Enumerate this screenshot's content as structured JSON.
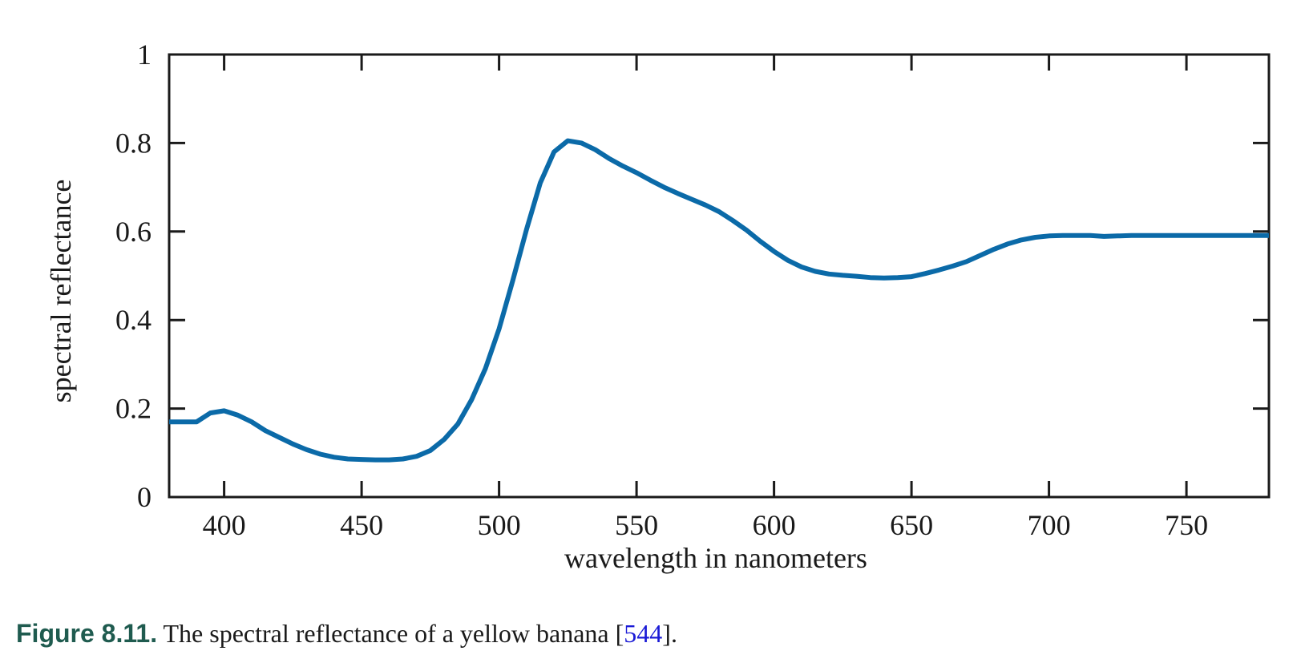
{
  "chart_data": {
    "type": "line",
    "xlabel": "wavelength in nanometers",
    "ylabel": "spectral reflectance",
    "xlim": [
      380,
      780
    ],
    "ylim": [
      0,
      1
    ],
    "xticks": [
      400,
      450,
      500,
      550,
      600,
      650,
      700,
      750
    ],
    "yticks": [
      0,
      0.2,
      0.4,
      0.6,
      0.8,
      1
    ],
    "ytick_labels": [
      "0",
      "0.2",
      "0.4",
      "0.6",
      "0.8",
      "1"
    ],
    "grid": false,
    "series": [
      {
        "color": "#0b6aa8",
        "x": [
          380,
          385,
          390,
          395,
          400,
          405,
          410,
          415,
          420,
          425,
          430,
          435,
          440,
          445,
          450,
          455,
          460,
          465,
          470,
          475,
          480,
          485,
          490,
          495,
          500,
          505,
          510,
          515,
          520,
          525,
          530,
          535,
          540,
          545,
          550,
          555,
          560,
          565,
          570,
          575,
          580,
          585,
          590,
          595,
          600,
          605,
          610,
          615,
          620,
          625,
          630,
          635,
          640,
          645,
          650,
          655,
          660,
          665,
          670,
          675,
          680,
          685,
          690,
          695,
          700,
          705,
          710,
          715,
          720,
          725,
          730,
          735,
          740,
          745,
          750,
          755,
          760,
          765,
          770,
          775,
          780
        ],
        "y": [
          0.17,
          0.17,
          0.17,
          0.19,
          0.195,
          0.185,
          0.17,
          0.15,
          0.135,
          0.12,
          0.107,
          0.097,
          0.09,
          0.086,
          0.085,
          0.084,
          0.084,
          0.086,
          0.092,
          0.105,
          0.13,
          0.165,
          0.22,
          0.29,
          0.38,
          0.49,
          0.605,
          0.71,
          0.78,
          0.805,
          0.8,
          0.785,
          0.765,
          0.748,
          0.733,
          0.716,
          0.7,
          0.686,
          0.673,
          0.66,
          0.645,
          0.625,
          0.603,
          0.578,
          0.555,
          0.535,
          0.52,
          0.51,
          0.504,
          0.501,
          0.499,
          0.496,
          0.495,
          0.496,
          0.498,
          0.505,
          0.513,
          0.522,
          0.532,
          0.546,
          0.56,
          0.572,
          0.581,
          0.587,
          0.59,
          0.591,
          0.591,
          0.591,
          0.589,
          0.59,
          0.591,
          0.591,
          0.591,
          0.591,
          0.591,
          0.591,
          0.591,
          0.591,
          0.591,
          0.591,
          0.591
        ]
      }
    ]
  },
  "caption": {
    "label": "Figure 8.11.",
    "text_before": " The spectral reflectance of a yellow banana ",
    "ref_open": "[",
    "ref": "544",
    "ref_close": "]",
    "text_after": "."
  }
}
